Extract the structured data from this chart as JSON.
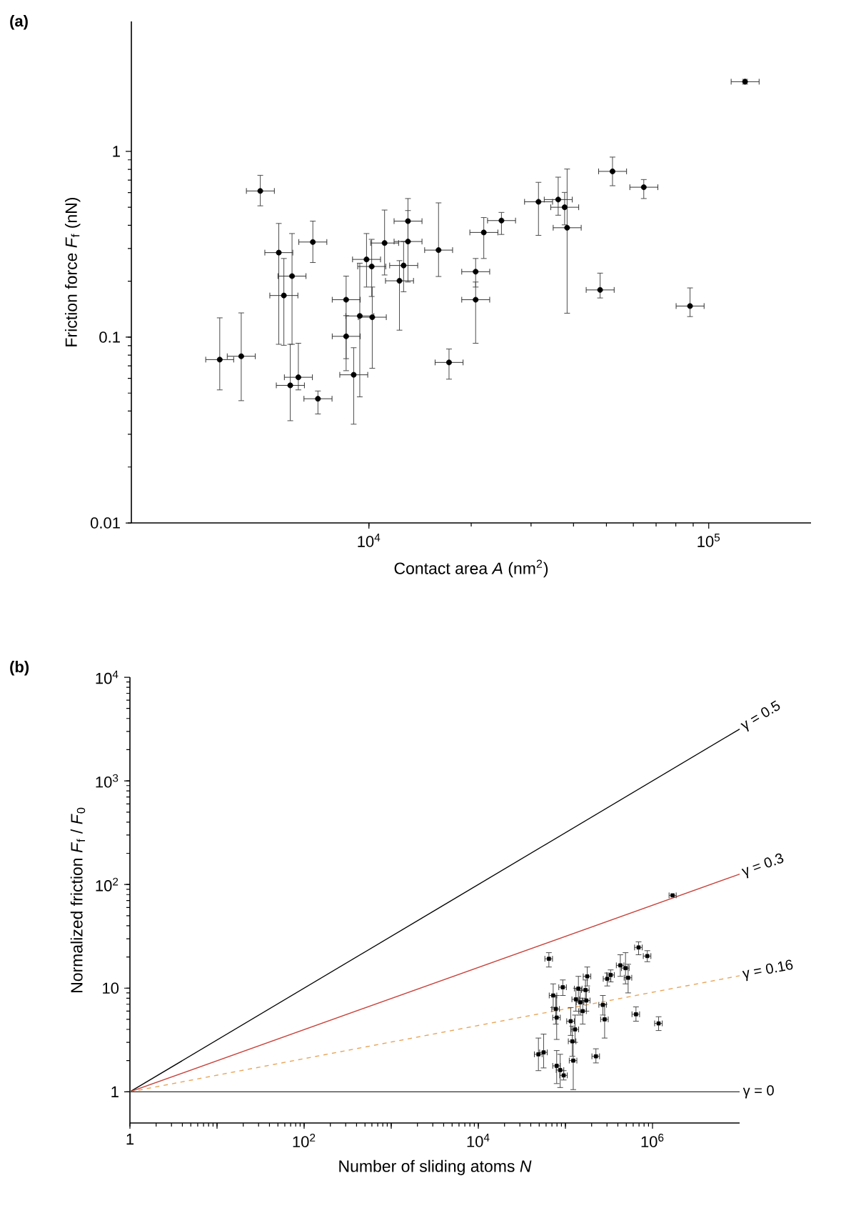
{
  "chart_data": [
    {
      "type": "scatter",
      "title": "(a)",
      "xlabel": "Contact area *A* (nm$^{2}$)",
      "ylabel": "Friction force *F*$_{f}$ (nN)",
      "log": "xy",
      "marker": "circle",
      "color": "#000000",
      "xlim": [
        2000,
        200000
      ],
      "ylim": [
        0.01,
        5
      ],
      "xticks": [
        {
          "value": 10000,
          "label": "10$^{4}$"
        },
        {
          "value": 100000,
          "label": "10$^{5}$"
        }
      ],
      "yticks": [
        0.01,
        0.1,
        1
      ],
      "x": [
        3640,
        4210,
        4790,
        5430,
        5620,
        5940,
        5870,
        6200,
        6840,
        7080,
        8570,
        8570,
        9020,
        9400,
        9840,
        10190,
        10230,
        11120,
        12300,
        12650,
        13030,
        13030,
        16030,
        17210,
        20610,
        20610,
        21780,
        24550,
        31550,
        36060,
        37670,
        38310,
        47900,
        52100,
        64400,
        88100,
        127900
      ],
      "values": [
        0.0757,
        0.0789,
        0.612,
        0.285,
        0.1675,
        0.213,
        0.055,
        0.0608,
        0.325,
        0.0466,
        0.159,
        0.101,
        0.0627,
        0.13,
        0.262,
        0.24,
        0.128,
        0.321,
        0.201,
        0.243,
        0.421,
        0.327,
        0.294,
        0.0731,
        0.225,
        0.159,
        0.366,
        0.424,
        0.535,
        0.55,
        0.5,
        0.388,
        0.1795,
        0.78,
        0.641,
        0.147,
        2.37
      ],
      "errors": [
        [
          0.052,
          0.127
        ],
        [
          0.0455,
          0.135
        ],
        [
          0.509,
          0.743
        ],
        [
          0.0915,
          0.409
        ],
        [
          0.0904,
          0.265
        ],
        [
          0.0915,
          0.361
        ],
        [
          0.0355,
          0.0915
        ],
        [
          0.052,
          0.0927
        ],
        [
          0.252,
          0.421
        ],
        [
          0.0386,
          0.0513
        ],
        [
          0.066,
          0.213
        ],
        [
          0.0766,
          0.1305
        ],
        [
          0.034,
          0.0877
        ],
        [
          0.0477,
          0.25
        ],
        [
          0.186,
          0.361
        ],
        [
          0.1655,
          0.336
        ],
        [
          0.068,
          0.186
        ],
        [
          0.216,
          0.483
        ],
        [
          0.109,
          0.258
        ],
        [
          0.1755,
          0.327
        ],
        [
          0.327,
          0.557
        ],
        [
          0.198,
          0.48
        ],
        [
          0.212,
          0.528
        ],
        [
          0.0594,
          0.0863
        ],
        [
          0.186,
          0.265
        ],
        [
          0.0927,
          0.198
        ],
        [
          0.265,
          0.44
        ],
        [
          0.357,
          0.469
        ],
        [
          0.353,
          0.681
        ],
        [
          0.453,
          0.726
        ],
        [
          0.402,
          0.601
        ],
        [
          0.1345,
          0.803
        ],
        [
          0.1625,
          0.221
        ],
        [
          0.653,
          0.931
        ],
        [
          0.557,
          0.705
        ],
        [
          0.129,
          0.184
        ],
        [
          2.3,
          2.44
        ]
      ],
      "xerrors": [
        [
          3310,
          4000
        ],
        [
          3830,
          4630
        ],
        [
          4360,
          5270
        ],
        [
          4940,
          5970
        ],
        [
          5110,
          6180
        ],
        [
          5400,
          6530
        ],
        [
          5340,
          6460
        ],
        [
          5640,
          6820
        ],
        [
          6220,
          7520
        ],
        [
          6440,
          7790
        ],
        [
          7800,
          9430
        ],
        [
          7800,
          9430
        ],
        [
          8210,
          9920
        ],
        [
          8550,
          10340
        ],
        [
          8950,
          10820
        ],
        [
          9270,
          11210
        ],
        [
          9310,
          11250
        ],
        [
          10120,
          12230
        ],
        [
          11190,
          13530
        ],
        [
          11510,
          13920
        ],
        [
          11860,
          14330
        ],
        [
          11860,
          14330
        ],
        [
          14590,
          17630
        ],
        [
          15660,
          18930
        ],
        [
          18760,
          22670
        ],
        [
          18760,
          22670
        ],
        [
          19820,
          23960
        ],
        [
          22340,
          27010
        ],
        [
          28710,
          34710
        ],
        [
          32810,
          39670
        ],
        [
          34280,
          41440
        ],
        [
          34860,
          42140
        ],
        [
          43590,
          52690
        ],
        [
          47410,
          57310
        ],
        [
          58600,
          70840
        ],
        [
          80170,
          96910
        ],
        [
          116400,
          140700
        ]
      ]
    },
    {
      "type": "scatter",
      "title": "(b)",
      "xlabel": "Number of sliding atoms *N*",
      "ylabel": "Normalized friction *F*$_{f}$ / *F*$_{0}$",
      "log": "xy",
      "xlim": [
        1,
        10000000
      ],
      "ylim": [
        0.5,
        10000
      ],
      "xticks": [
        1,
        {
          "value": 10,
          "label": null
        },
        {
          "value": 100,
          "label": "10$^{2}$"
        },
        {
          "value": 1000,
          "label": null
        },
        {
          "value": 10000,
          "label": "10$^{4}$"
        },
        {
          "value": 100000,
          "label": null
        },
        {
          "value": 1000000,
          "label": "10$^{6}$"
        }
      ],
      "yticks": [
        1,
        10,
        {
          "value": 100,
          "label": "10$^{2}$"
        },
        {
          "value": 1000,
          "label": "10$^{3}$"
        },
        {
          "value": 10000,
          "label": "10$^{4}$"
        }
      ],
      "series": [
        {
          "type": "line",
          "name": "γ = 0.5",
          "color": "#000000",
          "line_style": "solid",
          "x": [
            1,
            10000000
          ],
          "values": [
            1,
            3162
          ]
        },
        {
          "type": "line",
          "name": "γ = 0.3",
          "color": "#c8423a",
          "line_style": "solid",
          "x": [
            1,
            10000000
          ],
          "values": [
            1,
            125.9
          ]
        },
        {
          "type": "line",
          "name": "γ = 0.16",
          "color": "#e8a55a",
          "line_style": "dashed",
          "x": [
            1,
            10000000
          ],
          "values": [
            1,
            13.18
          ]
        },
        {
          "type": "line",
          "name": "γ = 0",
          "color": "#333333",
          "line_style": "solid",
          "x": [
            1,
            10000000
          ],
          "values": [
            1,
            1
          ]
        },
        {
          "type": "scatter",
          "color": "#000000",
          "marker": "square",
          "x": [
            49000,
            56200,
            64600,
            72400,
            77600,
            79400,
            79400,
            87100,
            93300,
            95500,
            115000,
            120000,
            123000,
            129000,
            132000,
            141000,
            148000,
            158000,
            170000,
            178000,
            174000,
            224000,
            269000,
            282000,
            302000,
            331000,
            427000,
            490000,
            525000,
            646000,
            692000,
            871000,
            1175000,
            1700000
          ],
          "values": [
            2.3,
            2.4,
            19.2,
            8.5,
            6.3,
            5.2,
            1.78,
            1.62,
            10.2,
            1.44,
            4.8,
            3.07,
            2.0,
            4.0,
            7.8,
            9.9,
            7.3,
            6.0,
            9.6,
            13.0,
            7.6,
            2.2,
            6.9,
            5.0,
            12.3,
            13.4,
            16.6,
            15.6,
            12.6,
            5.6,
            24.7,
            20.4,
            4.57,
            78.6
          ],
          "errors": [
            [
              1.6,
              3.3
            ],
            [
              1.7,
              3.6
            ],
            [
              16,
              22
            ],
            [
              6.5,
              11
            ],
            [
              4.5,
              8.5
            ],
            [
              3.2,
              8.5
            ],
            [
              1.2,
              2.5
            ],
            [
              1.1,
              2.3
            ],
            [
              8.5,
              12
            ],
            [
              1.3,
              1.6
            ],
            [
              3.5,
              6.5
            ],
            [
              2.2,
              4.3
            ],
            [
              1.05,
              3.0
            ],
            [
              3.0,
              5.5
            ],
            [
              6,
              10
            ],
            [
              7.5,
              13
            ],
            [
              5.5,
              9.5
            ],
            [
              4.5,
              8
            ],
            [
              7.5,
              12
            ],
            [
              10.5,
              16
            ],
            [
              6,
              9.5
            ],
            [
              1.9,
              2.6
            ],
            [
              5.5,
              8.5
            ],
            [
              3.3,
              7
            ],
            [
              10.5,
              14
            ],
            [
              11.5,
              15
            ],
            [
              13,
              21
            ],
            [
              11,
              22
            ],
            [
              9,
              17
            ],
            [
              4.8,
              6.6
            ],
            [
              21,
              28
            ],
            [
              18,
              23
            ],
            [
              3.9,
              5.3
            ],
            null
          ],
          "xerrors": [
            [
              44000,
              54000
            ],
            [
              50600,
              61800
            ],
            [
              58100,
              71100
            ],
            [
              65200,
              79600
            ],
            [
              69800,
              85400
            ],
            [
              71500,
              87300
            ],
            [
              71500,
              87300
            ],
            [
              78400,
              95800
            ],
            [
              84000,
              102600
            ],
            [
              86000,
              105000
            ],
            [
              103500,
              126500
            ],
            [
              108000,
              132000
            ],
            [
              110700,
              135300
            ],
            [
              116100,
              141900
            ],
            [
              118800,
              145200
            ],
            [
              126900,
              155100
            ],
            [
              133200,
              162800
            ],
            [
              142200,
              173800
            ],
            [
              153000,
              187000
            ],
            [
              160200,
              195800
            ],
            [
              156600,
              191400
            ],
            [
              201600,
              246400
            ],
            [
              242100,
              295900
            ],
            [
              253800,
              310200
            ],
            [
              271800,
              332200
            ],
            [
              297900,
              364100
            ],
            [
              384300,
              469700
            ],
            [
              441000,
              539000
            ],
            [
              472500,
              577500
            ],
            [
              581400,
              710600
            ],
            [
              622800,
              761200
            ],
            [
              783900,
              958100
            ],
            [
              1057500,
              1292500
            ],
            [
              1550000,
              1870000
            ]
          ]
        }
      ]
    }
  ]
}
